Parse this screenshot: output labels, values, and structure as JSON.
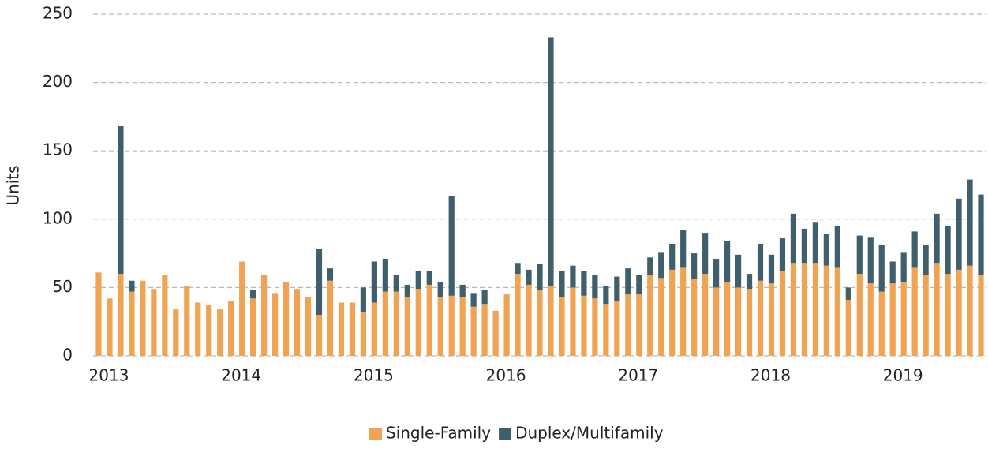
{
  "chart_data": {
    "type": "stacked_bar",
    "y_label": "Units",
    "categories": [
      "2013",
      null,
      null,
      null,
      null,
      null,
      null,
      null,
      null,
      null,
      null,
      null,
      "2014",
      null,
      null,
      null,
      null,
      null,
      null,
      null,
      null,
      null,
      null,
      null,
      "2015",
      null,
      null,
      null,
      null,
      null,
      null,
      null,
      null,
      null,
      null,
      null,
      "2016",
      null,
      null,
      null,
      null,
      null,
      null,
      null,
      null,
      null,
      null,
      null,
      "2017",
      null,
      null,
      null,
      null,
      null,
      null,
      null,
      null,
      null,
      null,
      null,
      "2018",
      null,
      null,
      null,
      null,
      null,
      null,
      null,
      null,
      null,
      null,
      null,
      "2019",
      null,
      null,
      null,
      null,
      null,
      null,
      null,
      null
    ],
    "series": [
      {
        "name": "Single-Family",
        "color": "#f0a352",
        "values": [
          61,
          42,
          60,
          47,
          55,
          49,
          59,
          34,
          51,
          39,
          37,
          34,
          40,
          69,
          42,
          59,
          46,
          54,
          49,
          43,
          30,
          55,
          39,
          39,
          32,
          39,
          47,
          47,
          43,
          49,
          52,
          43,
          44,
          43,
          36,
          38,
          33,
          45,
          60,
          52,
          48,
          51,
          43,
          50,
          44,
          42,
          38,
          40,
          45,
          45,
          59,
          57,
          63,
          65,
          56,
          60,
          50,
          54,
          50,
          49,
          55,
          53,
          62,
          68,
          68,
          68,
          66,
          65,
          41,
          60,
          53,
          47,
          53,
          54,
          65,
          59,
          68,
          60,
          63,
          66,
          59
        ]
      },
      {
        "name": "Duplex/Multifamily",
        "color": "#405f6d",
        "values": [
          0,
          0,
          108,
          8,
          0,
          0,
          0,
          0,
          0,
          0,
          0,
          0,
          0,
          0,
          6,
          0,
          0,
          0,
          0,
          0,
          48,
          9,
          0,
          0,
          18,
          30,
          24,
          12,
          9,
          13,
          10,
          11,
          73,
          9,
          10,
          10,
          0,
          0,
          8,
          11,
          19,
          182,
          19,
          16,
          18,
          17,
          13,
          18,
          19,
          14,
          13,
          19,
          19,
          27,
          19,
          30,
          21,
          30,
          24,
          11,
          27,
          21,
          24,
          36,
          25,
          30,
          23,
          30,
          9,
          28,
          34,
          34,
          16,
          22,
          26,
          22,
          36,
          35,
          52,
          63,
          59
        ]
      }
    ],
    "ylim": [
      0,
      250
    ],
    "yticks": [
      0,
      50,
      100,
      150,
      200,
      250
    ],
    "grid": true,
    "legend": "bottom"
  }
}
